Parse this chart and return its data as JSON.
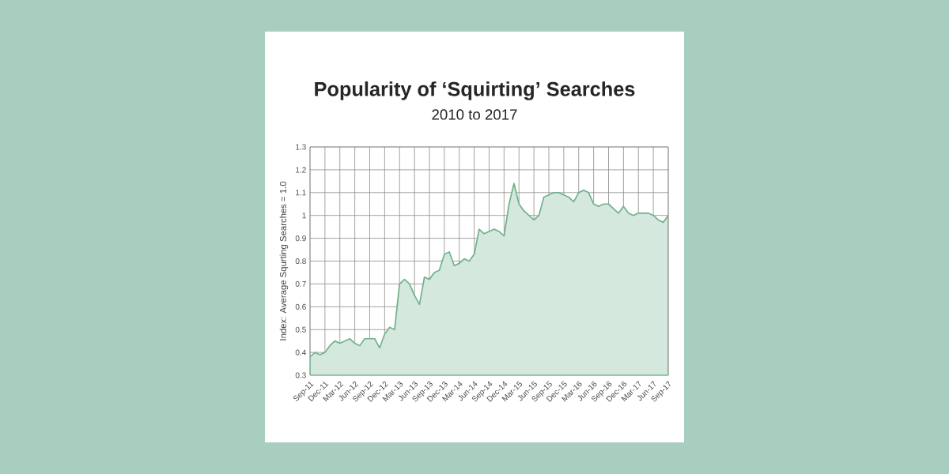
{
  "chart_data": {
    "type": "area",
    "title": "Popularity of ‘Squirting’ Searches",
    "subtitle": "2010 to 2017",
    "ylabel": "Index: Average Squrting Searches = 1.0",
    "categories": [
      "Sep-11",
      null,
      null,
      "Dec-11",
      null,
      null,
      "Mar-12",
      null,
      null,
      "Jun-12",
      null,
      null,
      "Sep-12",
      null,
      null,
      "Dec-12",
      null,
      null,
      "Mar-13",
      null,
      null,
      "Jun-13",
      null,
      null,
      "Sep-13",
      null,
      null,
      "Dec-13",
      null,
      null,
      "Mar-14",
      null,
      null,
      "Jun-14",
      null,
      null,
      "Sep-14",
      null,
      null,
      "Dec-14",
      null,
      null,
      "Mar-15",
      null,
      null,
      "Jun-15",
      null,
      null,
      "Sep-15",
      null,
      null,
      "Dec-15",
      null,
      null,
      "Mar-16",
      null,
      null,
      "Jun-16",
      null,
      null,
      "Sep-16",
      null,
      null,
      "Dec-16",
      null,
      null,
      "Mar-17",
      null,
      null,
      "Jun-17",
      null,
      null,
      "Sep-17"
    ],
    "values": [
      0.38,
      0.4,
      0.39,
      0.4,
      0.43,
      0.45,
      0.44,
      0.45,
      0.46,
      0.44,
      0.43,
      0.46,
      0.46,
      0.46,
      0.42,
      0.48,
      0.51,
      0.5,
      0.7,
      0.72,
      0.7,
      0.65,
      0.61,
      0.73,
      0.72,
      0.75,
      0.76,
      0.83,
      0.84,
      0.78,
      0.79,
      0.81,
      0.8,
      0.83,
      0.94,
      0.92,
      0.93,
      0.94,
      0.93,
      0.91,
      1.05,
      1.14,
      1.05,
      1.02,
      1.0,
      0.98,
      1.0,
      1.08,
      1.09,
      1.1,
      1.1,
      1.09,
      1.08,
      1.06,
      1.1,
      1.11,
      1.1,
      1.05,
      1.04,
      1.05,
      1.05,
      1.03,
      1.01,
      1.04,
      1.01,
      1.0,
      1.01,
      1.01,
      1.01,
      1.0,
      0.98,
      0.97,
      1.0
    ],
    "color": "#d5e8dd",
    "ylim": [
      0.3,
      1.3
    ],
    "yticks": [
      0.3,
      0.4,
      0.5,
      0.6,
      0.7,
      0.8,
      0.9,
      1,
      1.1,
      1.2,
      1.3
    ],
    "grid": true,
    "marker": "none",
    "line_style": "solid"
  }
}
